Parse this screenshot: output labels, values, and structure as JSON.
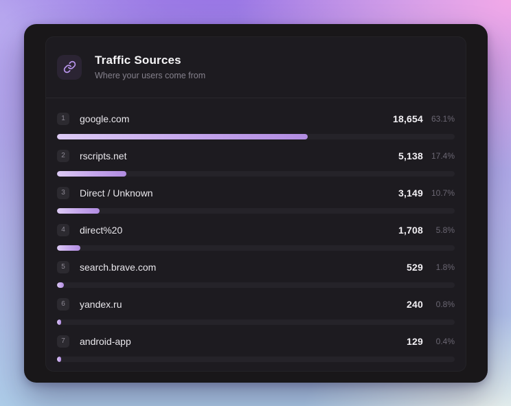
{
  "card": {
    "title": "Traffic Sources",
    "subtitle": "Where your users come from"
  },
  "colors": {
    "accent": "#b793ea",
    "bar_fill_start": "#dccaf4",
    "bar_fill_end": "#b18ce1",
    "bar_track": "#252329",
    "window_bg": "#191719",
    "card_bg": "#1d1b20"
  },
  "icons": {
    "header": "link-icon"
  },
  "chart_data": {
    "type": "bar",
    "orientation": "horizontal",
    "title": "Traffic Sources",
    "subtitle": "Where your users come from",
    "categories": [
      "google.com",
      "rscripts.net",
      "Direct / Unknown",
      "direct%20",
      "search.brave.com",
      "yandex.ru",
      "android-app"
    ],
    "values": [
      18654,
      5138,
      3149,
      1708,
      529,
      240,
      129
    ],
    "value_labels": [
      "18,654",
      "5,138",
      "3,149",
      "1,708",
      "529",
      "240",
      "129"
    ],
    "percentages": [
      63.1,
      17.4,
      10.7,
      5.8,
      1.8,
      0.8,
      0.4
    ],
    "percent_labels": [
      "63.1%",
      "17.4%",
      "10.7%",
      "5.8%",
      "1.8%",
      "0.8%",
      "0.4%"
    ],
    "ranks": [
      1,
      2,
      3,
      4,
      5,
      6,
      7
    ],
    "xlim": [
      0,
      100
    ],
    "grid": false,
    "legend": false
  }
}
